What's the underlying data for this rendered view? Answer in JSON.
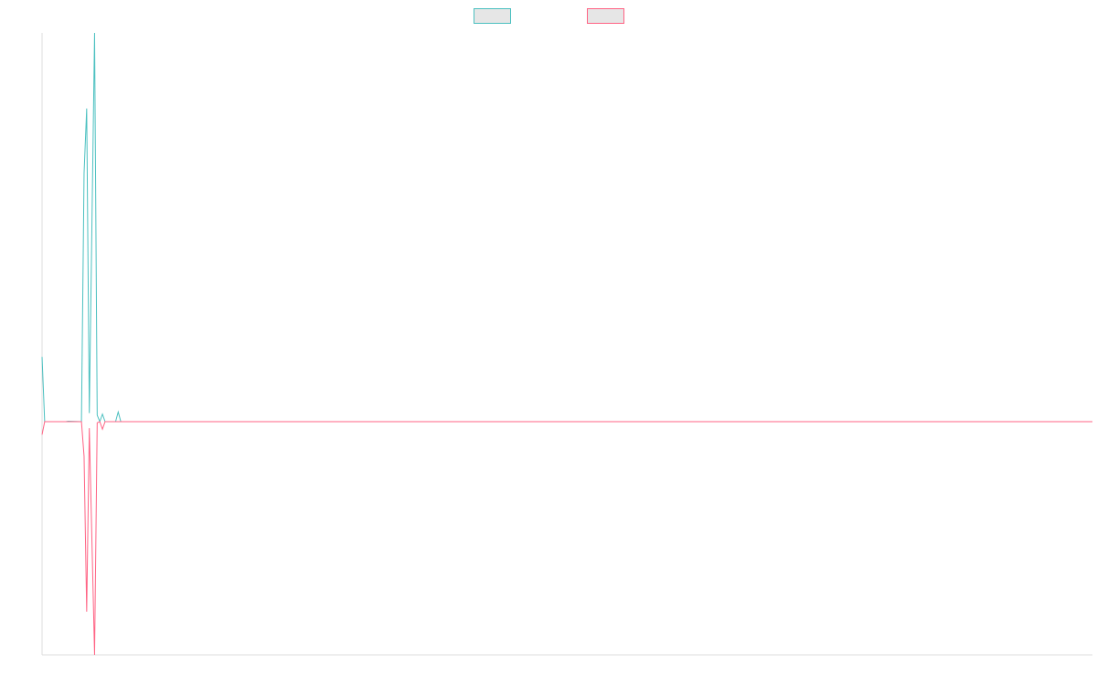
{
  "chart_data": {
    "type": "line",
    "title": "",
    "xlabel": "",
    "ylabel": "",
    "grid": false,
    "legend_position": "top-center",
    "x_range": [
      0,
      200
    ],
    "ylim": [
      -1.08,
      1.8
    ],
    "series": [
      {
        "color": "#4bc0c0",
        "swatch_fill": "#e6e6e6",
        "points": [
          [
            0,
            0.3
          ],
          [
            0.5,
            0.0
          ],
          [
            4.5,
            0.0
          ],
          [
            5,
            0.002
          ],
          [
            7.5,
            0.0
          ],
          [
            8,
            1.15
          ],
          [
            8.5,
            1.45
          ],
          [
            9,
            0.04
          ],
          [
            10,
            1.8
          ],
          [
            10.5,
            0.03
          ],
          [
            11,
            0.0
          ],
          [
            11.5,
            0.035
          ],
          [
            12,
            0.0
          ],
          [
            13,
            0.0
          ],
          [
            14,
            0.0
          ],
          [
            14.5,
            0.045
          ],
          [
            15,
            0.0
          ],
          [
            200,
            0.0
          ]
        ]
      },
      {
        "color": "#ff6384",
        "swatch_fill": "#e6e6e6",
        "points": [
          [
            0,
            -0.06
          ],
          [
            0.5,
            0.0
          ],
          [
            7.5,
            0.0
          ],
          [
            8,
            -0.16
          ],
          [
            8.5,
            -0.88
          ],
          [
            9,
            -0.03
          ],
          [
            10,
            -1.08
          ],
          [
            10.5,
            -0.005
          ],
          [
            11,
            0.0
          ],
          [
            11.5,
            -0.035
          ],
          [
            12,
            0.0
          ],
          [
            200,
            0.0
          ]
        ]
      }
    ]
  }
}
